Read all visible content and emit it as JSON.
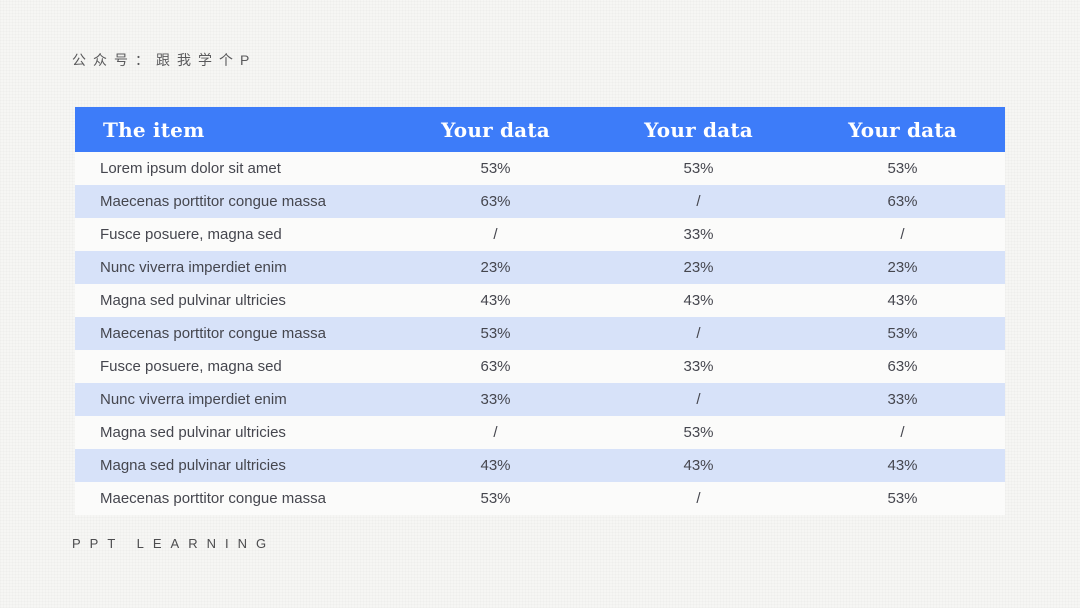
{
  "header": {
    "brand": "公众号：跟我学个P"
  },
  "footer": {
    "label": "PPT LEARNING"
  },
  "colors": {
    "header_bg": "#3d7cf9",
    "header_text": "#ffffff",
    "row_bg": "#fbfbfa",
    "row_alt_bg": "#d7e2f9",
    "body_text": "#45464e",
    "slide_bg": "#f6f6f4"
  },
  "table": {
    "columns": [
      "The item",
      "Your data",
      "Your data",
      "Your data"
    ],
    "rows": [
      {
        "item": "Lorem ipsum dolor sit amet",
        "values": [
          "53%",
          "53%",
          "53%"
        ]
      },
      {
        "item": "Maecenas porttitor congue massa",
        "values": [
          "63%",
          "/",
          "63%"
        ]
      },
      {
        "item": "Fusce posuere, magna sed",
        "values": [
          "/",
          "33%",
          "/"
        ]
      },
      {
        "item": "Nunc viverra imperdiet enim",
        "values": [
          "23%",
          "23%",
          "23%"
        ]
      },
      {
        "item": "Magna sed pulvinar ultricies",
        "values": [
          "43%",
          "43%",
          "43%"
        ]
      },
      {
        "item": "Maecenas porttitor congue massa",
        "values": [
          "53%",
          "/",
          "53%"
        ]
      },
      {
        "item": "Fusce posuere, magna sed",
        "values": [
          "63%",
          "33%",
          "63%"
        ]
      },
      {
        "item": "Nunc viverra imperdiet enim",
        "values": [
          "33%",
          "/",
          "33%"
        ]
      },
      {
        "item": "Magna sed pulvinar ultricies",
        "values": [
          "/",
          "53%",
          "/"
        ]
      },
      {
        "item": "Magna sed pulvinar ultricies",
        "values": [
          "43%",
          "43%",
          "43%"
        ]
      },
      {
        "item": "Maecenas porttitor congue massa",
        "values": [
          "53%",
          "/",
          "53%"
        ]
      }
    ]
  }
}
